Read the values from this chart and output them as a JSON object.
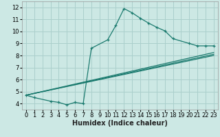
{
  "title": "",
  "xlabel": "Humidex (Indice chaleur)",
  "bg_color": "#cce8e4",
  "grid_color": "#aacfcc",
  "line_color": "#1a7a6e",
  "xlim": [
    -0.5,
    23.5
  ],
  "ylim": [
    3.5,
    12.5
  ],
  "xtick_labels": [
    "0",
    "1",
    "2",
    "3",
    "4",
    "5",
    "6",
    "7",
    "8",
    "9",
    "10",
    "11",
    "12",
    "13",
    "14",
    "15",
    "16",
    "17",
    "18",
    "19",
    "20",
    "21",
    "22",
    "23"
  ],
  "xtick_vals": [
    0,
    1,
    2,
    3,
    4,
    5,
    6,
    7,
    8,
    9,
    10,
    11,
    12,
    13,
    14,
    15,
    16,
    17,
    18,
    19,
    20,
    21,
    22,
    23
  ],
  "ytick_vals": [
    4,
    5,
    6,
    7,
    8,
    9,
    10,
    11,
    12
  ],
  "main_x": [
    0,
    1,
    3,
    4,
    5,
    6,
    7,
    8,
    10,
    11,
    12,
    13,
    14,
    15,
    16,
    17,
    18,
    20,
    21,
    22,
    23
  ],
  "main_y": [
    4.7,
    4.5,
    4.2,
    4.1,
    3.9,
    4.1,
    4.0,
    8.6,
    9.3,
    10.5,
    11.9,
    11.55,
    11.1,
    10.7,
    10.35,
    10.05,
    9.4,
    9.0,
    8.8,
    8.8,
    8.8
  ],
  "ref_lines": [
    {
      "x0": 0,
      "y0": 4.7,
      "x1": 23,
      "y1": 8.0
    },
    {
      "x0": 0,
      "y0": 4.7,
      "x1": 23,
      "y1": 8.1
    },
    {
      "x0": 0,
      "y0": 4.7,
      "x1": 23,
      "y1": 8.25
    }
  ],
  "xlabel_fontsize": 7,
  "tick_fontsize": 6
}
